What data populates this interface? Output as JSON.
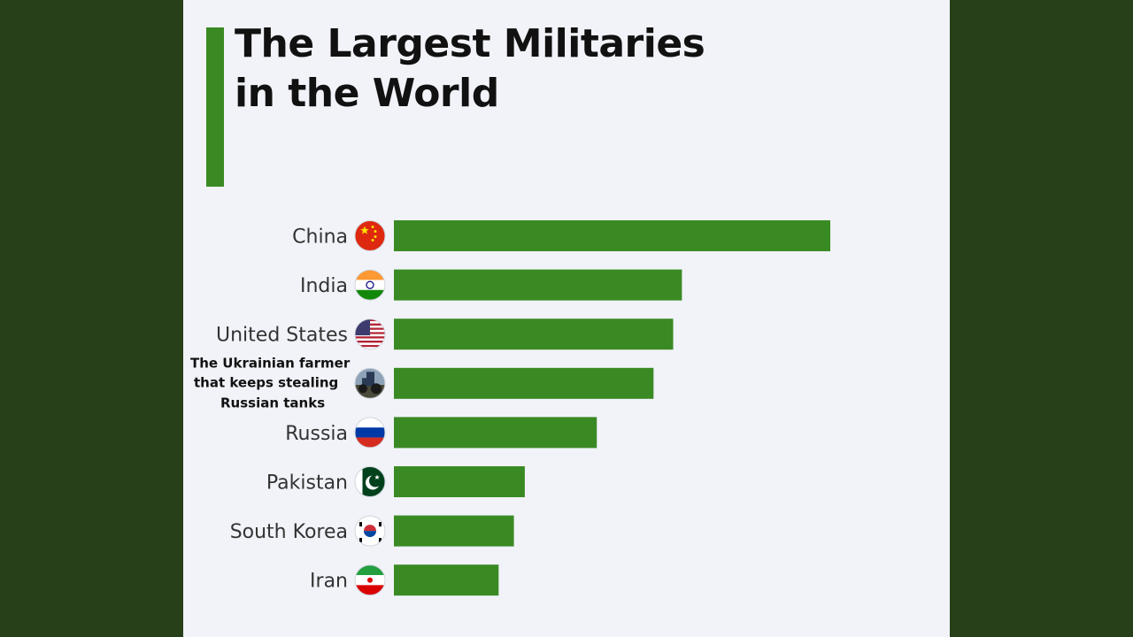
{
  "chart_data": {
    "type": "bar",
    "orientation": "horizontal",
    "title": "The Largest Militaries in the World",
    "title_lines": [
      "The Largest Militaries",
      "in the World"
    ],
    "categories": [
      "China",
      "India",
      "United States",
      "The Ukrainian farmer that keeps stealing Russian tanks",
      "Russia",
      "Pakistan",
      "South Korea",
      "Iran"
    ],
    "category_label_lines": [
      [
        "China"
      ],
      [
        "India"
      ],
      [
        "United States"
      ],
      [
        "The Ukrainian farmer",
        "that keeps stealing",
        "Russian tanks"
      ],
      [
        "Russia"
      ],
      [
        "Pakistan"
      ],
      [
        "South Korea"
      ],
      [
        "Iran"
      ]
    ],
    "icons": [
      "china-flag-icon",
      "india-flag-icon",
      "us-flag-icon",
      "tractor-photo-icon",
      "russia-flag-icon",
      "pakistan-flag-icon",
      "south-korea-flag-icon",
      "iran-flag-icon"
    ],
    "values": [
      100,
      66,
      64,
      59.5,
      46.5,
      30,
      27.5,
      24
    ],
    "value_scale": "relative (largest = 100), no axis or numbers shown",
    "xlim": [
      0,
      100
    ],
    "grid": false,
    "legend": "none",
    "bar_color": "#3a8a24"
  },
  "colors": {
    "background": "#27401a",
    "panel": "#f1f3f9",
    "accent": "#3a8a24"
  }
}
